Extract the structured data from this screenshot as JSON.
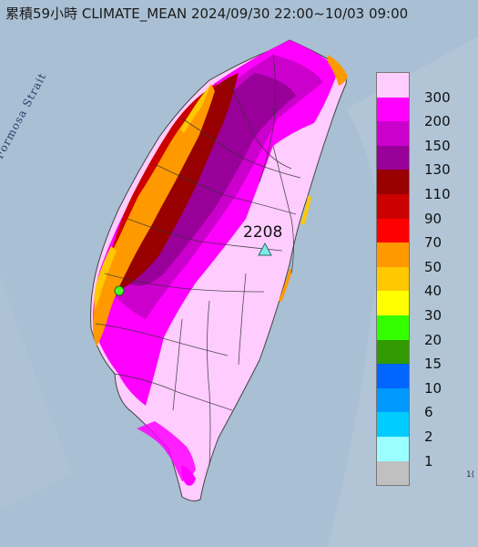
{
  "title": "累積59小時 CLIMATE_MEAN 2024/09/30 22:00~10/03 09:00",
  "map_labels": {
    "strait": "Formosa Strait",
    "peak_value": "2208",
    "corner_fragment": "1("
  },
  "markers": [
    {
      "name": "peak-station",
      "shape": "triangle",
      "color": "#7fe8e8"
    },
    {
      "name": "green-dot",
      "shape": "circle",
      "color": "#4cff2a"
    }
  ],
  "legend": {
    "levels": [
      {
        "label": "300",
        "color": "#ffccff"
      },
      {
        "label": "200",
        "color": "#ff00ff"
      },
      {
        "label": "150",
        "color": "#cc00cc"
      },
      {
        "label": "130",
        "color": "#990099"
      },
      {
        "label": "110",
        "color": "#990000"
      },
      {
        "label": "90",
        "color": "#cc0000"
      },
      {
        "label": "70",
        "color": "#ff0000"
      },
      {
        "label": "50",
        "color": "#ff9900"
      },
      {
        "label": "40",
        "color": "#ffc800"
      },
      {
        "label": "30",
        "color": "#ffff00"
      },
      {
        "label": "20",
        "color": "#33ff00"
      },
      {
        "label": "15",
        "color": "#339900"
      },
      {
        "label": "10",
        "color": "#0066ff"
      },
      {
        "label": "6",
        "color": "#0099ff"
      },
      {
        "label": "2",
        "color": "#00ccff"
      },
      {
        "label": "1",
        "color": "#99ffff"
      },
      {
        "label": "",
        "color": "#c0c0c0"
      }
    ]
  }
}
